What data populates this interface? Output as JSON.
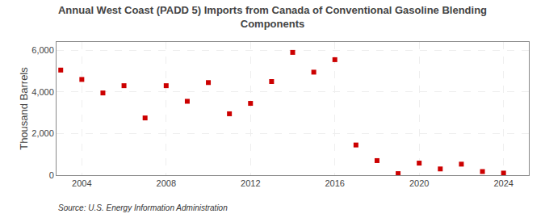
{
  "chart_data": {
    "type": "scatter",
    "title": "Annual West Coast (PADD 5) Imports from Canada of Conventional Gasoline Blending\nComponents",
    "ylabel": "Thousand Barrels",
    "annotations": [
      "Source: U.S. Energy Information Administration"
    ],
    "x": [
      2003,
      2004,
      2005,
      2006,
      2007,
      2008,
      2009,
      2010,
      2011,
      2012,
      2013,
      2014,
      2015,
      2016,
      2017,
      2018,
      2019,
      2020,
      2021,
      2022,
      2023,
      2024
    ],
    "values": [
      5050,
      4600,
      3950,
      4300,
      2750,
      4300,
      3550,
      4450,
      2950,
      3450,
      4500,
      5900,
      4950,
      5550,
      1450,
      700,
      75,
      580,
      300,
      530,
      175,
      100
    ],
    "color": "#cc0000",
    "marker": "square",
    "xlim": [
      2002.8,
      2025.2
    ],
    "ylim": [
      0,
      6400
    ],
    "xticks": [
      2004,
      2008,
      2012,
      2016,
      2020,
      2024
    ],
    "yticks": [
      0,
      {
        "value": 2000,
        "label": "2,000"
      },
      {
        "value": 4000,
        "label": "4,000"
      },
      {
        "value": 6000,
        "label": "6,000"
      }
    ],
    "grid": true
  }
}
